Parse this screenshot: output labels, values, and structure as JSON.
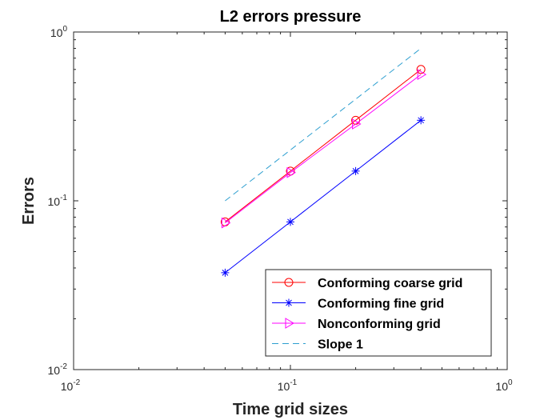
{
  "chart_data": {
    "type": "line",
    "title": "L2 errors pressure",
    "xlabel": "Time grid sizes",
    "ylabel": "Errors",
    "xscale": "log",
    "yscale": "log",
    "xlim": [
      0.01,
      1
    ],
    "ylim": [
      0.01,
      1
    ],
    "xticks": [
      {
        "value": 0.01,
        "base": "10",
        "exp": "-2"
      },
      {
        "value": 0.1,
        "base": "10",
        "exp": "-1"
      },
      {
        "value": 1,
        "base": "10",
        "exp": "0"
      }
    ],
    "yticks": [
      {
        "value": 0.01,
        "base": "10",
        "exp": "-2"
      },
      {
        "value": 0.1,
        "base": "10",
        "exp": "-1"
      },
      {
        "value": 1,
        "base": "10",
        "exp": "0"
      }
    ],
    "legend_position": "bottom-right",
    "series": [
      {
        "name": "Conforming coarse grid",
        "color": "#ff0000",
        "marker": "circle",
        "dash": "solid",
        "x": [
          0.05,
          0.1,
          0.2,
          0.4
        ],
        "y": [
          0.075,
          0.15,
          0.3,
          0.6
        ]
      },
      {
        "name": "Conforming fine grid",
        "color": "#0000ff",
        "marker": "asterisk",
        "dash": "solid",
        "x": [
          0.05,
          0.1,
          0.2,
          0.4
        ],
        "y": [
          0.0375,
          0.075,
          0.15,
          0.3
        ]
      },
      {
        "name": "Nonconforming grid",
        "color": "#ff00ff",
        "marker": "triangle-right",
        "dash": "solid",
        "x": [
          0.05,
          0.1,
          0.2,
          0.4
        ],
        "y": [
          0.074,
          0.147,
          0.285,
          0.56
        ]
      },
      {
        "name": "Slope 1",
        "color": "#2e9fd0",
        "marker": "none",
        "dash": "dashed",
        "x": [
          0.05,
          0.4
        ],
        "y": [
          0.1,
          0.8
        ]
      }
    ]
  }
}
